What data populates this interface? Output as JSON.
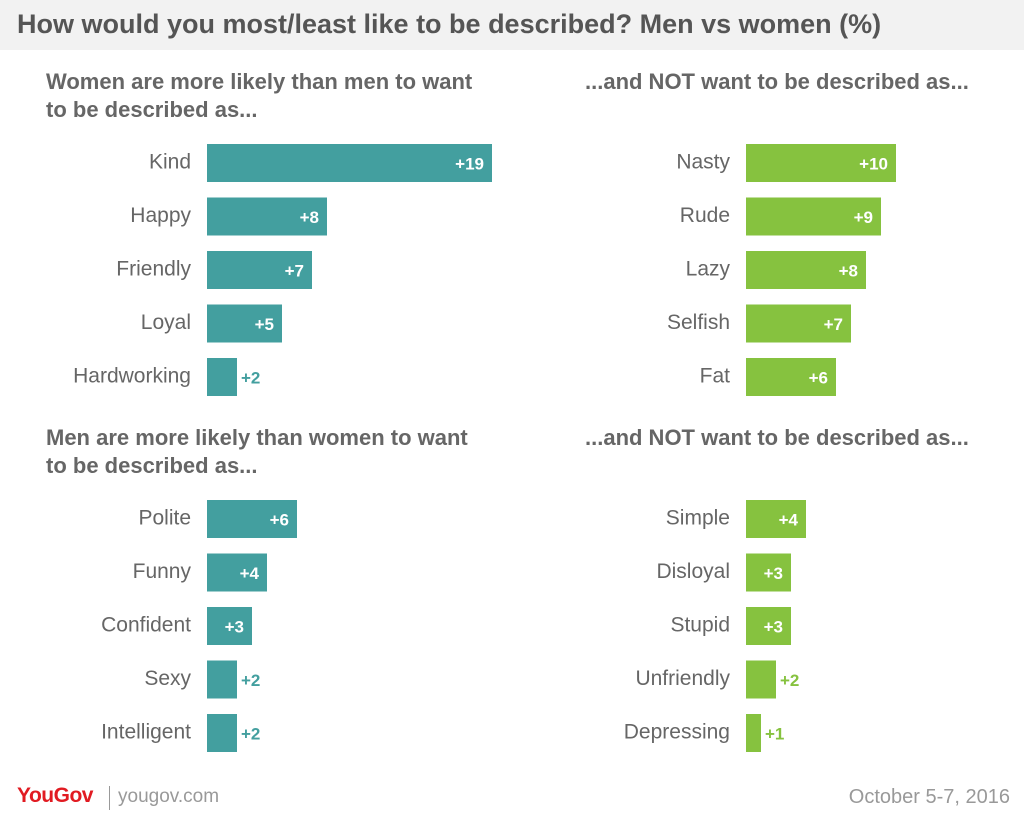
{
  "title": "How would you most/least like to be described? Men vs women (%)",
  "colors": {
    "teal": "#439f9f",
    "green": "#86c23f",
    "text": "#666666"
  },
  "footer": {
    "logo": "YouGov",
    "site": "yougov.com",
    "date": "October 5-7, 2016"
  },
  "chart_data": [
    {
      "type": "bar",
      "orientation": "horizontal",
      "title": "Women are more likely than men to want to be described as...",
      "color": "#439f9f",
      "categories": [
        "Kind",
        "Happy",
        "Friendly",
        "Loyal",
        "Hardworking"
      ],
      "values": [
        19,
        8,
        7,
        5,
        2
      ],
      "labels": [
        "+19",
        "+8",
        "+7",
        "+5",
        "+2"
      ]
    },
    {
      "type": "bar",
      "orientation": "horizontal",
      "title": "...and NOT want to be described as...",
      "color": "#86c23f",
      "categories": [
        "Nasty",
        "Rude",
        "Lazy",
        "Selfish",
        "Fat"
      ],
      "values": [
        10,
        9,
        8,
        7,
        6
      ],
      "labels": [
        "+10",
        "+9",
        "+8",
        "+7",
        "+6"
      ]
    },
    {
      "type": "bar",
      "orientation": "horizontal",
      "title": "Men are more likely than women to want to be described as...",
      "color": "#439f9f",
      "categories": [
        "Polite",
        "Funny",
        "Confident",
        "Sexy",
        "Intelligent"
      ],
      "values": [
        6,
        4,
        3,
        2,
        2
      ],
      "labels": [
        "+6",
        "+4",
        "+3",
        "+2",
        "+2"
      ]
    },
    {
      "type": "bar",
      "orientation": "horizontal",
      "title": "...and NOT want to be described as...",
      "color": "#86c23f",
      "categories": [
        "Simple",
        "Disloyal",
        "Stupid",
        "Unfriendly",
        "Depressing"
      ],
      "values": [
        4,
        3,
        3,
        2,
        1
      ],
      "labels": [
        "+4",
        "+3",
        "+3",
        "+2",
        "+1"
      ]
    }
  ]
}
